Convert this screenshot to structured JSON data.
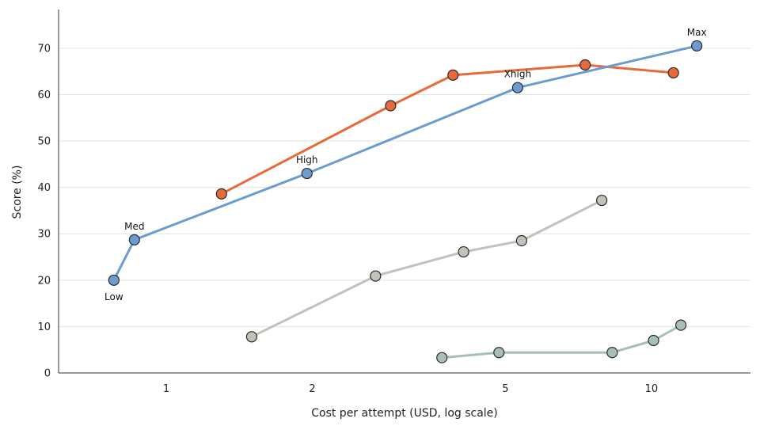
{
  "chart_data": {
    "type": "line",
    "title": "",
    "xlabel": "Cost per attempt (USD, log scale)",
    "ylabel": "Score (%)",
    "xscale": "log",
    "xlim": [
      0.6,
      16
    ],
    "ylim": [
      0,
      78
    ],
    "xticks": [
      1,
      2,
      5,
      10
    ],
    "xtick_labels": [
      "1",
      "2",
      "5",
      "10"
    ],
    "yticks": [
      0,
      10,
      20,
      30,
      40,
      50,
      60,
      70
    ],
    "ytick_labels": [
      "0",
      "10",
      "20",
      "30",
      "40",
      "50",
      "60",
      "70"
    ],
    "grid": "horizontal",
    "legend": "none",
    "series": [
      {
        "color": "#e8693a",
        "x": [
          1.3,
          2.9,
          3.9,
          7.3,
          11.1
        ],
        "y": [
          38.6,
          57.6,
          64.2,
          66.4,
          64.7
        ]
      },
      {
        "color": "#6c9bcf",
        "x": [
          0.78,
          0.86,
          1.95,
          5.3,
          12.4
        ],
        "y": [
          20.0,
          28.7,
          43.0,
          61.5,
          70.5
        ],
        "point_labels": [
          "Low",
          "Med",
          "High",
          "Xhigh",
          "Max"
        ],
        "label_positions": [
          "below",
          "above",
          "above",
          "above",
          "above"
        ]
      },
      {
        "color": "#c2c2bb",
        "x": [
          1.5,
          2.7,
          4.1,
          5.4,
          7.9
        ],
        "y": [
          7.8,
          20.9,
          26.1,
          28.5,
          37.2
        ]
      },
      {
        "color": "#a7c0b6",
        "x": [
          3.7,
          4.85,
          8.3,
          10.1,
          11.5
        ],
        "y": [
          3.3,
          4.4,
          4.4,
          7.0,
          10.3
        ]
      }
    ]
  }
}
